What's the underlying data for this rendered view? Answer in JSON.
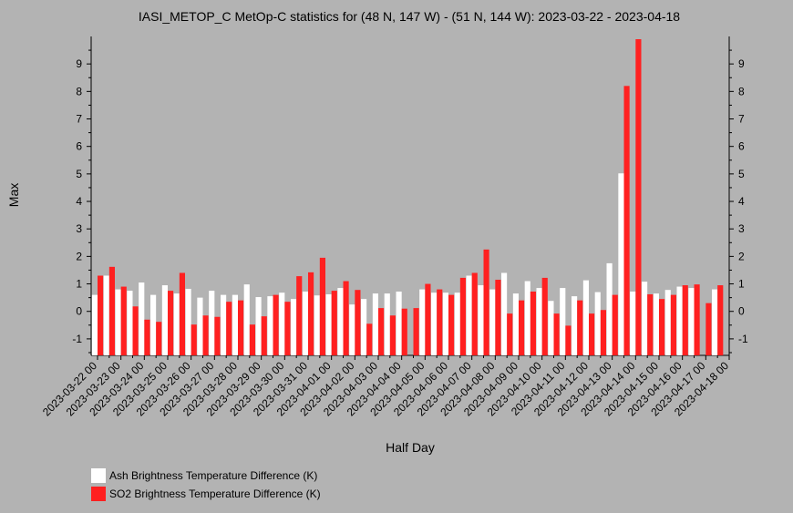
{
  "chart_data": {
    "type": "bar",
    "title": "IASI_METOP_C MetOp-C statistics for (48 N, 147 W) - (51 N, 144 W): 2023-03-22 - 2023-04-18",
    "xlabel": "Half Day",
    "ylabel": "Max",
    "ylim": [
      -1.6,
      10
    ],
    "yticks": [
      -1,
      0,
      1,
      2,
      3,
      4,
      5,
      6,
      7,
      8,
      9
    ],
    "grid": false,
    "legend_position": "bottom-left",
    "x_tick_labels": [
      "2023-03-22 00",
      "2023-03-23 00",
      "2023-03-24 00",
      "2023-03-25 00",
      "2023-03-26 00",
      "2023-03-27 00",
      "2023-03-28 00",
      "2023-03-29 00",
      "2023-03-30 00",
      "2023-03-31 00",
      "2023-04-01 00",
      "2023-04-02 00",
      "2023-04-03 00",
      "2023-04-04 00",
      "2023-04-05 00",
      "2023-04-06 00",
      "2023-04-07 00",
      "2023-04-08 00",
      "2023-04-09 00",
      "2023-04-10 00",
      "2023-04-11 00",
      "2023-04-12 00",
      "2023-04-13 00",
      "2023-04-14 00",
      "2023-04-15 00",
      "2023-04-16 00",
      "2023-04-17 00",
      "2023-04-18 00"
    ],
    "series": [
      {
        "name": "Ash Brightness Temperature Difference (K)",
        "color": "#ffffff",
        "values": [
          0.6,
          1.3,
          0.8,
          0.75,
          1.05,
          0.6,
          0.95,
          0.65,
          0.82,
          0.5,
          0.75,
          0.6,
          0.6,
          0.98,
          0.52,
          0.55,
          0.68,
          0.45,
          0.72,
          0.58,
          0.62,
          0.85,
          0.25,
          0.45,
          0.65,
          0.65,
          0.72,
          null,
          0.8,
          0.68,
          0.68,
          0.68,
          1.3,
          0.95,
          0.8,
          1.4,
          0.65,
          1.1,
          0.85,
          0.38,
          0.85,
          0.55,
          1.13,
          0.7,
          1.75,
          5.02,
          0.72,
          1.08,
          0.65,
          0.78,
          0.9,
          0.85,
          null,
          0.8
        ]
      },
      {
        "name": "SO2 Brightness Temperature Difference (K)",
        "color": "#ff2020",
        "values": [
          1.3,
          1.62,
          0.9,
          0.18,
          -0.3,
          -0.38,
          0.75,
          1.4,
          -0.48,
          -0.15,
          -0.2,
          0.35,
          0.4,
          -0.48,
          -0.18,
          0.6,
          0.35,
          1.28,
          1.42,
          1.95,
          0.75,
          1.1,
          0.78,
          -0.45,
          0.12,
          -0.15,
          0.1,
          0.12,
          1.0,
          0.8,
          0.6,
          1.22,
          1.4,
          2.25,
          1.15,
          -0.08,
          0.4,
          0.72,
          1.22,
          -0.08,
          -0.52,
          0.4,
          -0.08,
          0.05,
          0.6,
          8.2,
          9.9,
          0.62,
          0.45,
          0.6,
          0.95,
          0.98,
          0.3,
          0.95
        ]
      }
    ]
  },
  "legend": {
    "ash_label": "Ash Brightness Temperature Difference (K)",
    "so2_label": "SO2 Brightness Temperature Difference (K)"
  },
  "colors": {
    "background": "#b3b3b3",
    "ash": "#ffffff",
    "so2": "#ff2020"
  }
}
